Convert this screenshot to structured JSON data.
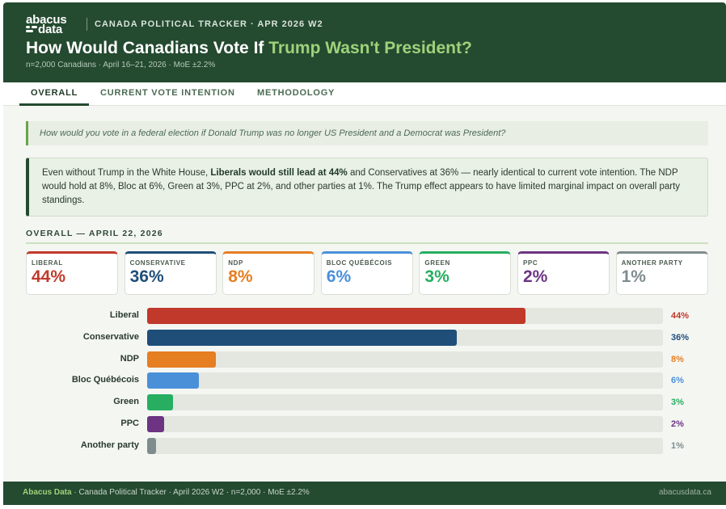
{
  "header": {
    "logo_line1": "abacus",
    "logo_line2": "data",
    "kicker": "CANADA POLITICAL TRACKER · APR 2026 W2",
    "title_main": "How Would Canadians Vote If ",
    "title_highlight": "Trump Wasn't President?",
    "subtitle": "n=2,000 Canadians · April 16–21, 2026 · MoE ±2.2%"
  },
  "tabs": [
    {
      "label": "OVERALL",
      "active": true
    },
    {
      "label": "CURRENT VOTE INTENTION",
      "active": false
    },
    {
      "label": "METHODOLOGY",
      "active": false
    }
  ],
  "question": "How would you vote in a federal election if Donald Trump was no longer US President and a Democrat was President?",
  "summary": {
    "before": "Even without Trump in the White House, ",
    "bold": "Liberals would still lead at 44%",
    "after": " and Conservatives at 36% — nearly identical to current vote intention. The NDP would hold at 8%, Bloc at 6%, Green at 3%, PPC at 2%, and other parties at 1%. The Trump effect appears to have limited marginal impact on overall party standings."
  },
  "section_title": "OVERALL — APRIL 22, 2026",
  "cards": [
    {
      "label": "LIBERAL",
      "value": "44%",
      "color": "#c0392b"
    },
    {
      "label": "CONSERVATIVE",
      "value": "36%",
      "color": "#1f4e79"
    },
    {
      "label": "NDP",
      "value": "8%",
      "color": "#e67e22"
    },
    {
      "label": "BLOC QUÉBÉCOIS",
      "value": "6%",
      "color": "#4a90d9"
    },
    {
      "label": "GREEN",
      "value": "3%",
      "color": "#27ae60"
    },
    {
      "label": "PPC",
      "value": "2%",
      "color": "#6c3483"
    },
    {
      "label": "ANOTHER PARTY",
      "value": "1%",
      "color": "#7f8c8d"
    }
  ],
  "chart_data": {
    "type": "bar",
    "orientation": "horizontal",
    "categories": [
      "Liberal",
      "Conservative",
      "NDP",
      "Bloc Québécois",
      "Green",
      "PPC",
      "Another party"
    ],
    "values": [
      44,
      36,
      8,
      6,
      3,
      2,
      1
    ],
    "value_labels": [
      "44%",
      "36%",
      "8%",
      "6%",
      "3%",
      "2%",
      "1%"
    ],
    "colors": [
      "#c0392b",
      "#1f4e79",
      "#e67e22",
      "#4a90d9",
      "#27ae60",
      "#6c3483",
      "#7f8c8d"
    ],
    "xlim": [
      0,
      60
    ],
    "grid": false
  },
  "footer": {
    "brand": "Abacus Data",
    "text": " · Canada Political Tracker · April 2026 W2 · n=2,000 · MoE ±2.2%",
    "url": "abacusdata.ca"
  }
}
